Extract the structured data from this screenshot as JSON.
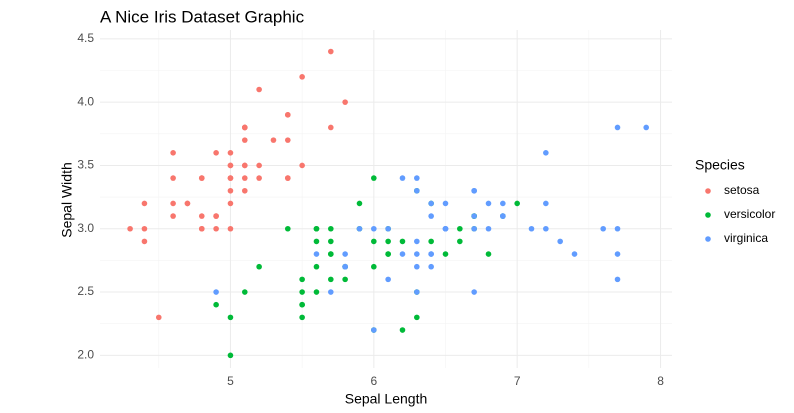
{
  "chart_data": {
    "type": "scatter",
    "title": "A Nice Iris Dataset Graphic",
    "x_label": "Sepal Length",
    "y_label": "Sepal Width",
    "legend_title": "Species",
    "legend": "right",
    "grid": true,
    "xlim": [
      4.09,
      8.08
    ],
    "ylim": [
      1.9,
      4.57
    ],
    "xticks": [
      5,
      6,
      7,
      8
    ],
    "yticks": [
      {
        "value": 2,
        "label": "2.0"
      },
      2.5,
      {
        "value": 3,
        "label": "3.0"
      },
      3.5,
      {
        "value": 4,
        "label": "4.0"
      },
      4.5
    ],
    "series": [
      {
        "name": "setosa",
        "color": "#F8766D",
        "x": [
          5.1,
          4.9,
          4.7,
          4.6,
          5.0,
          5.4,
          4.6,
          5.0,
          4.4,
          4.9,
          5.4,
          4.8,
          4.8,
          4.3,
          5.8,
          5.7,
          5.4,
          5.1,
          5.7,
          5.1,
          5.4,
          5.1,
          4.6,
          5.1,
          4.8,
          5.0,
          5.0,
          5.2,
          5.2,
          4.7,
          4.8,
          5.4,
          5.2,
          5.5,
          4.9,
          5.0,
          5.5,
          4.9,
          4.4,
          5.1,
          5.0,
          4.5,
          4.4,
          5.0,
          5.1,
          4.8,
          5.1,
          4.6,
          5.3,
          5.0
        ],
        "values": [
          3.5,
          3.0,
          3.2,
          3.1,
          3.6,
          3.9,
          3.4,
          3.4,
          2.9,
          3.1,
          3.7,
          3.4,
          3.0,
          3.0,
          4.0,
          4.4,
          3.9,
          3.5,
          3.8,
          3.8,
          3.4,
          3.7,
          3.6,
          3.3,
          3.4,
          3.0,
          3.4,
          3.5,
          3.4,
          3.2,
          3.1,
          3.4,
          4.1,
          4.2,
          3.1,
          3.2,
          3.5,
          3.6,
          3.0,
          3.4,
          3.5,
          2.3,
          3.2,
          3.5,
          3.8,
          3.0,
          3.8,
          3.2,
          3.7,
          3.3
        ]
      },
      {
        "name": "versicolor",
        "color": "#00BA38",
        "x": [
          7.0,
          6.4,
          6.9,
          5.5,
          6.5,
          5.7,
          6.3,
          4.9,
          6.6,
          5.2,
          5.0,
          5.9,
          6.0,
          6.1,
          5.6,
          6.7,
          5.6,
          5.8,
          6.2,
          5.6,
          5.9,
          6.1,
          6.3,
          6.1,
          6.4,
          6.6,
          6.8,
          6.7,
          6.0,
          5.7,
          5.5,
          5.5,
          5.8,
          6.0,
          5.4,
          6.0,
          6.7,
          6.3,
          5.6,
          5.5,
          5.5,
          6.1,
          5.8,
          5.0,
          5.6,
          5.7,
          5.7,
          6.2,
          5.1,
          5.7
        ],
        "values": [
          3.2,
          3.2,
          3.1,
          2.3,
          2.8,
          2.8,
          3.3,
          2.4,
          2.9,
          2.7,
          2.0,
          3.0,
          2.2,
          2.9,
          2.9,
          3.1,
          3.0,
          2.7,
          2.2,
          2.5,
          3.2,
          2.8,
          2.5,
          2.8,
          2.9,
          3.0,
          2.8,
          3.0,
          2.9,
          2.6,
          2.4,
          2.4,
          2.7,
          2.7,
          3.0,
          3.4,
          3.1,
          2.3,
          3.0,
          2.5,
          2.6,
          3.0,
          2.6,
          2.3,
          2.7,
          3.0,
          2.9,
          2.9,
          2.5,
          2.8
        ]
      },
      {
        "name": "virginica",
        "color": "#619CFF",
        "x": [
          6.3,
          5.8,
          7.1,
          6.3,
          6.5,
          7.6,
          4.9,
          7.3,
          6.7,
          7.2,
          6.5,
          6.4,
          6.8,
          5.7,
          5.8,
          6.4,
          6.5,
          7.7,
          7.7,
          6.0,
          6.9,
          5.6,
          7.7,
          6.3,
          6.7,
          7.2,
          6.2,
          6.1,
          6.4,
          7.2,
          7.4,
          7.9,
          6.4,
          6.3,
          6.1,
          7.7,
          6.3,
          6.4,
          6.0,
          6.9,
          6.7,
          6.9,
          5.8,
          6.8,
          6.7,
          6.7,
          6.3,
          6.5,
          6.2,
          5.9
        ],
        "values": [
          3.3,
          2.7,
          3.0,
          2.9,
          3.0,
          3.0,
          2.5,
          2.9,
          2.5,
          3.6,
          3.2,
          2.7,
          3.0,
          2.5,
          2.8,
          3.2,
          3.0,
          3.8,
          2.6,
          2.2,
          3.2,
          2.8,
          2.8,
          2.7,
          3.3,
          3.2,
          2.8,
          3.0,
          2.8,
          3.0,
          2.8,
          3.8,
          2.8,
          2.8,
          2.6,
          3.0,
          3.4,
          3.1,
          3.0,
          3.1,
          3.1,
          3.1,
          2.7,
          3.2,
          3.3,
          3.0,
          2.5,
          3.0,
          3.4,
          3.0
        ]
      }
    ]
  }
}
